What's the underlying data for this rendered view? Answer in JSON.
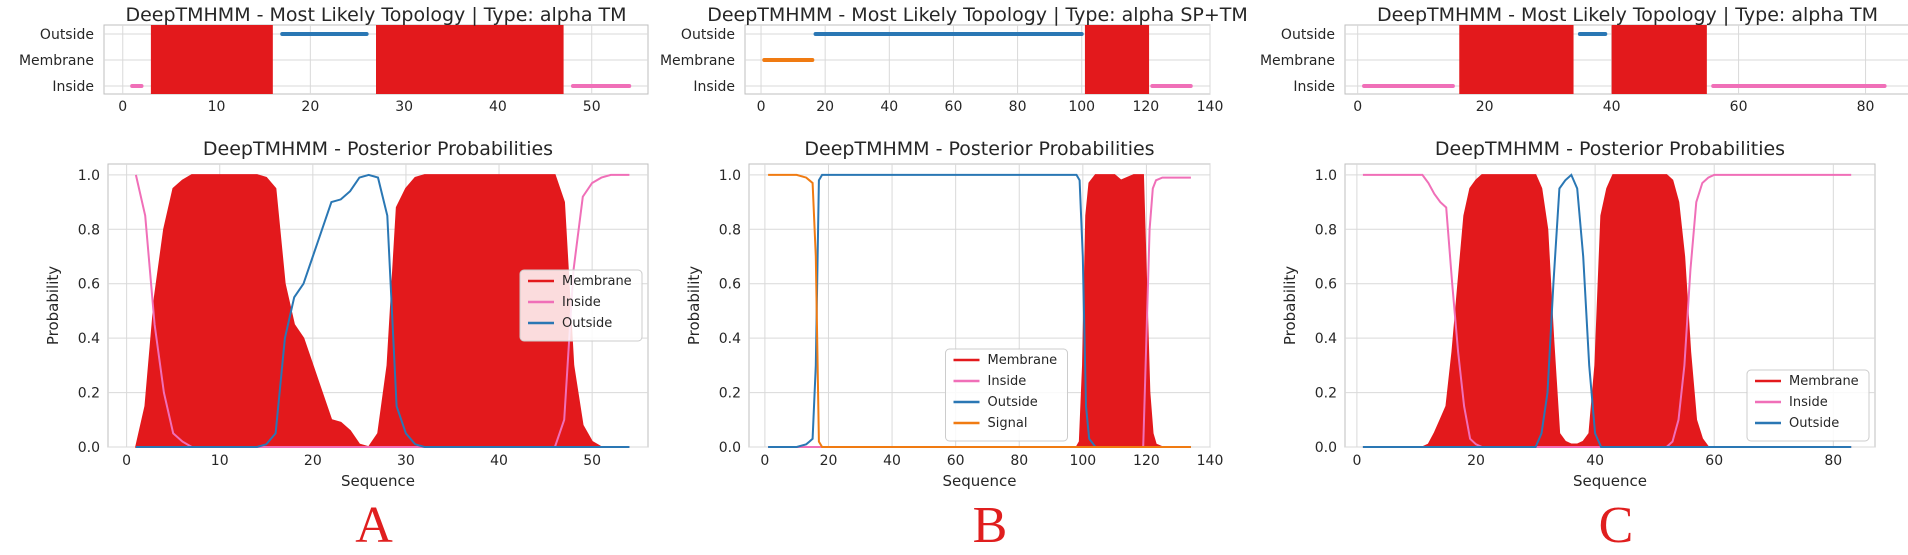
{
  "colors": {
    "membrane": "#e3191c",
    "inside": "#f06fb8",
    "outside": "#2a77b4",
    "signal": "#f07b12",
    "grid": "#d9d9d9",
    "axis": "#bfbfbf",
    "letter": "#e01e1e"
  },
  "panel_letters": [
    "A",
    "B",
    "C"
  ],
  "chart_data": [
    {
      "type": "area",
      "panel": "A",
      "topology": {
        "title": "DeepTMHMM - Most Likely Topology | Type: alpha TM",
        "levels": [
          "Outside",
          "Membrane",
          "Inside"
        ],
        "xlim": [
          -2,
          56
        ],
        "xticks": [
          0,
          10,
          20,
          30,
          40,
          50
        ],
        "segments": [
          {
            "type": "Inside",
            "start": 1,
            "end": 2
          },
          {
            "type": "Membrane",
            "start": 3,
            "end": 16
          },
          {
            "type": "Outside",
            "start": 17,
            "end": 26
          },
          {
            "type": "Membrane",
            "start": 27,
            "end": 47
          },
          {
            "type": "Inside",
            "start": 48,
            "end": 54
          }
        ]
      },
      "posterior": {
        "title": "DeepTMHMM - Posterior Probabilities",
        "xlabel": "Sequence",
        "ylabel": "Probability",
        "xlim": [
          -2,
          56
        ],
        "ylim": [
          0,
          1.04
        ],
        "xticks": [
          0,
          10,
          20,
          30,
          40,
          50
        ],
        "yticks": [
          0.0,
          0.2,
          0.4,
          0.6,
          0.8,
          1.0
        ],
        "legend_position": "center-right",
        "grid": true,
        "x": [
          1,
          2,
          3,
          4,
          5,
          6,
          7,
          8,
          9,
          10,
          11,
          12,
          13,
          14,
          15,
          16,
          17,
          18,
          19,
          20,
          21,
          22,
          23,
          24,
          25,
          26,
          27,
          28,
          29,
          30,
          31,
          32,
          33,
          34,
          35,
          36,
          37,
          38,
          39,
          40,
          41,
          42,
          43,
          44,
          45,
          46,
          47,
          48,
          49,
          50,
          51,
          52,
          53,
          54
        ],
        "series": [
          {
            "name": "Membrane",
            "kind": "membrane",
            "values": [
              0.0,
              0.15,
              0.55,
              0.8,
              0.95,
              0.98,
              1.0,
              1.0,
              1.0,
              1.0,
              1.0,
              1.0,
              1.0,
              1.0,
              0.99,
              0.95,
              0.6,
              0.45,
              0.4,
              0.3,
              0.2,
              0.1,
              0.09,
              0.06,
              0.01,
              0.0,
              0.05,
              0.3,
              0.88,
              0.95,
              0.99,
              1.0,
              1.0,
              1.0,
              1.0,
              1.0,
              1.0,
              1.0,
              1.0,
              1.0,
              1.0,
              1.0,
              1.0,
              1.0,
              1.0,
              1.0,
              0.9,
              0.3,
              0.08,
              0.02,
              0.0,
              0.0,
              0.0,
              0.0
            ]
          },
          {
            "name": "Inside",
            "kind": "inside",
            "values": [
              1.0,
              0.85,
              0.45,
              0.2,
              0.05,
              0.02,
              0.0,
              0.0,
              0.0,
              0.0,
              0.0,
              0.0,
              0.0,
              0.0,
              0.0,
              0.0,
              0.0,
              0.0,
              0.0,
              0.0,
              0.0,
              0.0,
              0.0,
              0.0,
              0.0,
              0.0,
              0.0,
              0.0,
              0.0,
              0.0,
              0.0,
              0.0,
              0.0,
              0.0,
              0.0,
              0.0,
              0.0,
              0.0,
              0.0,
              0.0,
              0.0,
              0.0,
              0.0,
              0.0,
              0.0,
              0.0,
              0.1,
              0.65,
              0.92,
              0.97,
              0.99,
              1.0,
              1.0,
              1.0
            ]
          },
          {
            "name": "Outside",
            "kind": "outside",
            "values": [
              0.0,
              0.0,
              0.0,
              0.0,
              0.0,
              0.0,
              0.0,
              0.0,
              0.0,
              0.0,
              0.0,
              0.0,
              0.0,
              0.0,
              0.01,
              0.05,
              0.4,
              0.55,
              0.6,
              0.7,
              0.8,
              0.9,
              0.91,
              0.94,
              0.99,
              1.0,
              0.99,
              0.85,
              0.15,
              0.05,
              0.01,
              0.0,
              0.0,
              0.0,
              0.0,
              0.0,
              0.0,
              0.0,
              0.0,
              0.0,
              0.0,
              0.0,
              0.0,
              0.0,
              0.0,
              0.0,
              0.0,
              0.0,
              0.0,
              0.0,
              0.0,
              0.0,
              0.0,
              0.0
            ]
          }
        ]
      }
    },
    {
      "type": "area",
      "panel": "B",
      "topology": {
        "title": "DeepTMHMM - Most Likely Topology | Type: alpha SP+TM",
        "levels": [
          "Outside",
          "Membrane",
          "Inside"
        ],
        "xlim": [
          -5,
          140
        ],
        "xticks": [
          0,
          20,
          40,
          60,
          80,
          100,
          120,
          140
        ],
        "segments": [
          {
            "type": "Signal",
            "start": 1,
            "end": 16
          },
          {
            "type": "Outside",
            "start": 17,
            "end": 100
          },
          {
            "type": "Membrane",
            "start": 101,
            "end": 121
          },
          {
            "type": "Inside",
            "start": 122,
            "end": 134
          }
        ]
      },
      "posterior": {
        "title": "DeepTMHMM - Posterior Probabilities",
        "xlabel": "Sequence",
        "ylabel": "Probability",
        "xlim": [
          -5,
          140
        ],
        "ylim": [
          0,
          1.04
        ],
        "xticks": [
          0,
          20,
          40,
          60,
          80,
          100,
          120,
          140
        ],
        "yticks": [
          0.0,
          0.2,
          0.4,
          0.6,
          0.8,
          1.0
        ],
        "legend_position": "lower-center",
        "grid": true,
        "x": [
          1,
          10,
          13,
          14,
          15,
          16,
          17,
          18,
          20,
          60,
          98,
          99,
          100,
          101,
          102,
          104,
          110,
          112,
          116,
          119,
          120,
          121,
          122,
          123,
          125,
          134
        ],
        "series": [
          {
            "name": "Membrane",
            "kind": "membrane",
            "values": [
              0.0,
              0.0,
              0.0,
              0.0,
              0.0,
              0.0,
              0.0,
              0.0,
              0.0,
              0.0,
              0.0,
              0.02,
              0.3,
              0.85,
              0.97,
              1.0,
              1.0,
              0.98,
              1.0,
              1.0,
              0.6,
              0.2,
              0.05,
              0.01,
              0.0,
              0.0
            ]
          },
          {
            "name": "Inside",
            "kind": "inside",
            "values": [
              0.0,
              0.0,
              0.0,
              0.0,
              0.0,
              0.0,
              0.0,
              0.0,
              0.0,
              0.0,
              0.0,
              0.0,
              0.0,
              0.0,
              0.0,
              0.0,
              0.0,
              0.0,
              0.0,
              0.0,
              0.4,
              0.8,
              0.95,
              0.98,
              0.99,
              0.99
            ]
          },
          {
            "name": "Outside",
            "kind": "outside",
            "values": [
              0.0,
              0.0,
              0.01,
              0.02,
              0.03,
              0.3,
              0.98,
              1.0,
              1.0,
              1.0,
              1.0,
              0.98,
              0.7,
              0.15,
              0.03,
              0.0,
              0.0,
              0.0,
              0.0,
              0.0,
              0.0,
              0.0,
              0.0,
              0.0,
              0.0,
              0.0
            ]
          },
          {
            "name": "Signal",
            "kind": "signal",
            "values": [
              1.0,
              1.0,
              0.99,
              0.98,
              0.97,
              0.7,
              0.02,
              0.0,
              0.0,
              0.0,
              0.0,
              0.0,
              0.0,
              0.0,
              0.0,
              0.0,
              0.0,
              0.0,
              0.0,
              0.0,
              0.0,
              0.0,
              0.0,
              0.0,
              0.0,
              0.0
            ]
          }
        ]
      }
    },
    {
      "type": "area",
      "panel": "C",
      "topology": {
        "title": "DeepTMHMM - Most Likely Topology | Type: alpha TM",
        "levels": [
          "Outside",
          "Membrane",
          "Inside"
        ],
        "xlim": [
          -2,
          87
        ],
        "xticks": [
          0,
          20,
          40,
          60,
          80
        ],
        "segments": [
          {
            "type": "Inside",
            "start": 1,
            "end": 15
          },
          {
            "type": "Membrane",
            "start": 16,
            "end": 34
          },
          {
            "type": "Outside",
            "start": 35,
            "end": 39
          },
          {
            "type": "Membrane",
            "start": 40,
            "end": 55
          },
          {
            "type": "Inside",
            "start": 56,
            "end": 83
          }
        ]
      },
      "posterior": {
        "title": "DeepTMHMM - Posterior Probabilities",
        "xlabel": "Sequence",
        "ylabel": "Probability",
        "xlim": [
          -2,
          87
        ],
        "ylim": [
          0,
          1.04
        ],
        "xticks": [
          0,
          20,
          40,
          60,
          80
        ],
        "yticks": [
          0.0,
          0.2,
          0.4,
          0.6,
          0.8,
          1.0
        ],
        "legend_position": "lower-right",
        "grid": true,
        "x": [
          1,
          11,
          12,
          13,
          14,
          15,
          16,
          17,
          18,
          19,
          20,
          21,
          22,
          30,
          31,
          32,
          33,
          34,
          35,
          36,
          37,
          38,
          39,
          40,
          41,
          42,
          43,
          44,
          52,
          53,
          54,
          55,
          56,
          57,
          58,
          59,
          60,
          61,
          83
        ],
        "series": [
          {
            "name": "Membrane",
            "kind": "membrane",
            "values": [
              0.0,
              0.0,
              0.01,
              0.05,
              0.1,
              0.15,
              0.35,
              0.6,
              0.85,
              0.95,
              0.98,
              1.0,
              1.0,
              1.0,
              0.95,
              0.8,
              0.4,
              0.05,
              0.02,
              0.01,
              0.01,
              0.02,
              0.05,
              0.3,
              0.85,
              0.95,
              1.0,
              1.0,
              1.0,
              0.98,
              0.9,
              0.7,
              0.35,
              0.1,
              0.03,
              0.0,
              0.0,
              0.0,
              0.0
            ]
          },
          {
            "name": "Inside",
            "kind": "inside",
            "values": [
              1.0,
              1.0,
              0.97,
              0.93,
              0.9,
              0.88,
              0.6,
              0.35,
              0.15,
              0.03,
              0.01,
              0.0,
              0.0,
              0.0,
              0.0,
              0.0,
              0.0,
              0.0,
              0.0,
              0.0,
              0.0,
              0.0,
              0.0,
              0.0,
              0.0,
              0.0,
              0.0,
              0.0,
              0.0,
              0.02,
              0.1,
              0.3,
              0.65,
              0.9,
              0.97,
              0.99,
              1.0,
              1.0,
              1.0
            ]
          },
          {
            "name": "Outside",
            "kind": "outside",
            "values": [
              0.0,
              0.0,
              0.0,
              0.0,
              0.0,
              0.0,
              0.0,
              0.0,
              0.0,
              0.0,
              0.0,
              0.0,
              0.0,
              0.0,
              0.05,
              0.2,
              0.6,
              0.95,
              0.98,
              1.0,
              0.95,
              0.7,
              0.3,
              0.05,
              0.0,
              0.0,
              0.0,
              0.0,
              0.0,
              0.0,
              0.0,
              0.0,
              0.0,
              0.0,
              0.0,
              0.0,
              0.0,
              0.0,
              0.0
            ]
          }
        ]
      }
    }
  ]
}
